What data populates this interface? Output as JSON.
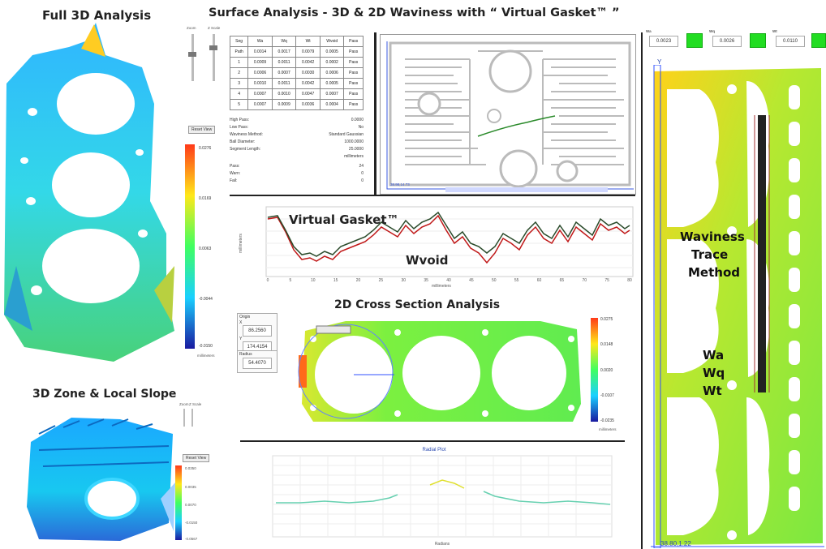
{
  "headings": {
    "full3d": "Full 3D Analysis",
    "main": "Surface Analysis -  3D & 2D Waviness with “ Virtual Gasket™ ”",
    "zone": "3D Zone & Local Slope",
    "virtual_gasket": "Virtual Gasket™",
    "wvoid": "Wvoid",
    "cross": "2D Cross Section Analysis",
    "trace1": "Waviness",
    "trace2": "Trace",
    "trace3": "Method",
    "wa": "Wa",
    "wq": "Wq",
    "wt": "Wt"
  },
  "left_scale": {
    "values": [
      "0.0276",
      "0.0169",
      "0.0063",
      "-0.0044",
      "-0.0150"
    ],
    "unit": "millimeters",
    "reset": "Reset View"
  },
  "small_scale": {
    "values": [
      "0.0350",
      "0.0035",
      "0.0070",
      "-0.0150",
      "-0.0567"
    ],
    "reset": "Reset View"
  },
  "sliders": {
    "label1": "Zoom",
    "label2": "Z Scale"
  },
  "table": {
    "headers": [
      "Seg",
      "Wa",
      "Wq",
      "Wt",
      "Wvoid",
      "Pass"
    ],
    "rows": [
      [
        "Path",
        "0.0014",
        "0.0017",
        "0.0079",
        "0.0005",
        "Pass"
      ],
      [
        "1",
        "0.0009",
        "0.0011",
        "0.0042",
        "0.0002",
        "Pass"
      ],
      [
        "2",
        "0.0006",
        "0.0007",
        "0.0030",
        "0.0006",
        "Pass"
      ],
      [
        "3",
        "0.0010",
        "0.0011",
        "0.0042",
        "0.0005",
        "Pass"
      ],
      [
        "4",
        "0.0007",
        "0.0010",
        "0.0047",
        "0.0007",
        "Pass"
      ],
      [
        "5",
        "0.0007",
        "0.0009",
        "0.0036",
        "0.0004",
        "Pass"
      ]
    ]
  },
  "settings": [
    {
      "k": "High Pass:",
      "v": "0.0000"
    },
    {
      "k": "Low Pass:",
      "v": "No"
    },
    {
      "k": "Waviness Method:",
      "v": "Standard Gaussian"
    },
    {
      "k": "Ball Diameter:",
      "v": "1000.0000"
    },
    {
      "k": "Segment Length:",
      "v": "25.0000"
    },
    {
      "k": "",
      "v": "millimeters"
    },
    {
      "k": "Pass:",
      "v": "24"
    },
    {
      "k": "Warn:",
      "v": "0"
    },
    {
      "k": "Fail:",
      "v": "0"
    }
  ],
  "map_coord": "38.98,14.73",
  "cross_scale": {
    "values": [
      "0.0275",
      "0.0148",
      "0.0020",
      "-0.0107",
      "-0.0235"
    ],
    "unit": "millimeters"
  },
  "origin_panel": {
    "origin": "Origin",
    "x_label": "X",
    "x": "86.2560",
    "y_label": "Y",
    "y": "174.4154",
    "radius_label": "Radius",
    "radius": "54.4070"
  },
  "profile": {
    "ylabel": "millimeters",
    "xlabel": "millimeters",
    "xticks": [
      "0",
      "5",
      "10",
      "15",
      "20",
      "25",
      "30",
      "35",
      "40",
      "45",
      "50",
      "55",
      "60",
      "65",
      "70",
      "75",
      "80"
    ]
  },
  "radial": {
    "title": "Radial Plot",
    "xlabel": "Radians"
  },
  "right_top": {
    "wa_label": "Wa",
    "wa": "0.0023",
    "wq_label": "Wq",
    "wq": "0.0026",
    "wt_label": "Wt",
    "wt": "0.0110"
  },
  "right_bottom": "38.80,1.22",
  "right_axis": "Y"
}
